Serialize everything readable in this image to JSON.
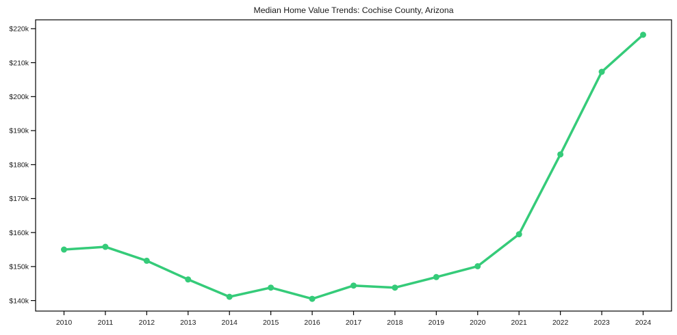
{
  "chart_data": {
    "type": "line",
    "title": "Median Home Value Trends: Cochise County, Arizona",
    "x": [
      2010,
      2011,
      2012,
      2013,
      2014,
      2015,
      2016,
      2017,
      2018,
      2019,
      2020,
      2021,
      2022,
      2023,
      2024
    ],
    "xtick_labels": [
      "2010",
      "2011",
      "2012",
      "2013",
      "2014",
      "2015",
      "2016",
      "2017",
      "2018",
      "2019",
      "2020",
      "2021",
      "2022",
      "2023",
      "2024"
    ],
    "series": [
      {
        "name": "Median Home Value",
        "color": "#35cb79",
        "values": [
          155000,
          155800,
          151700,
          146200,
          141100,
          143800,
          140500,
          144400,
          143800,
          146900,
          150100,
          159500,
          183000,
          207300,
          218200
        ]
      }
    ],
    "xlabel": "",
    "ylabel": "",
    "ylim": [
      136900,
      222600
    ],
    "yticks": [
      140000,
      150000,
      160000,
      170000,
      180000,
      190000,
      200000,
      210000,
      220000
    ],
    "ytick_labels": [
      "$140k",
      "$150k",
      "$160k",
      "$170k",
      "$180k",
      "$190k",
      "$200k",
      "$210k",
      "$220k"
    ],
    "grid": false,
    "legend": false,
    "marker": "circle",
    "marker_radius": 4.5,
    "line_width": 3.5,
    "axis_color": "#000000",
    "text_color": "#1a1a1a",
    "background": "#ffffff"
  }
}
